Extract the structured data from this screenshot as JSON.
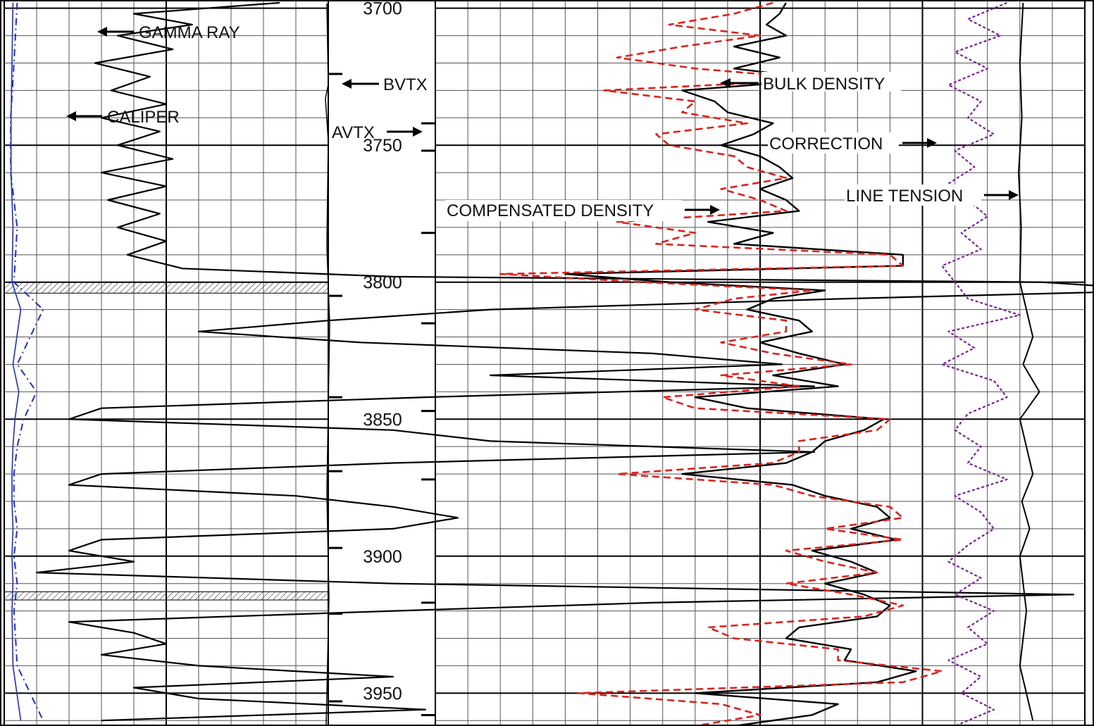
{
  "chart_data": {
    "type": "line",
    "depth_axis": {
      "range": [
        3697,
        3962
      ],
      "tick_labels": [
        "3700",
        "3750",
        "3800",
        "3850",
        "3900",
        "3950"
      ],
      "inverted": true
    },
    "grid": true,
    "labels": {
      "gamma_ray": "GAMMA RAY",
      "caliper": "CALIPER",
      "bvtx": "BVTX",
      "avtx": "AVTX",
      "bulk_density": "BULK DENSITY",
      "correction": "CORRECTION",
      "line_tension": "LINE TENSION",
      "compensated_density": "COMPENSATED DENSITY"
    },
    "markers": {
      "bvtx_depths": [
        3724,
        3805,
        3842,
        3869,
        3897,
        3921,
        3953
      ],
      "avtx_depths": [
        3742,
        3752,
        3782,
        3815,
        3847,
        3872,
        3917,
        3958
      ]
    },
    "shaded_intervals": [
      [
        3800,
        3804
      ],
      [
        3913,
        3916
      ]
    ],
    "colors": {
      "gamma_ray": "#000000",
      "caliper": "#1a2fd6",
      "bulk_density": "#000000",
      "compensated_density": "#e0201b",
      "correction": "#7b1f9c",
      "line_tension": "#000000"
    },
    "series": [
      {
        "name": "GAMMA RAY",
        "track": "left",
        "depth": [
          3698,
          3702,
          3706,
          3710,
          3715,
          3720,
          3725,
          3730,
          3735,
          3740,
          3745,
          3750,
          3755,
          3760,
          3765,
          3770,
          3775,
          3780,
          3785,
          3790,
          3795,
          3798,
          3800,
          3803,
          3806,
          3810,
          3814,
          3818,
          3822,
          3826,
          3830,
          3834,
          3838,
          3842,
          3846,
          3850,
          3854,
          3858,
          3862,
          3866,
          3870,
          3874,
          3878,
          3882,
          3886,
          3890,
          3894,
          3898,
          3902,
          3906,
          3910,
          3914,
          3917,
          3920,
          3924,
          3928,
          3932,
          3936,
          3940,
          3944,
          3948,
          3952,
          3956,
          3960
        ],
        "values": [
          85,
          40,
          58,
          35,
          52,
          28,
          45,
          33,
          50,
          30,
          48,
          35,
          52,
          30,
          50,
          32,
          48,
          35,
          50,
          38,
          55,
          120,
          320,
          360,
          260,
          150,
          100,
          60,
          110,
          200,
          240,
          150,
          250,
          130,
          30,
          20,
          120,
          150,
          250,
          120,
          30,
          20,
          90,
          120,
          140,
          120,
          30,
          20,
          40,
          10,
          120,
          330,
          200,
          120,
          20,
          40,
          50,
          30,
          60,
          120,
          40,
          60,
          130,
          30
        ],
        "unit": "track percent, 0 = left edge"
      },
      {
        "name": "CALIPER",
        "track": "left",
        "depth": [
          3698,
          3720,
          3740,
          3760,
          3780,
          3800,
          3810,
          3820,
          3830,
          3840,
          3850,
          3860,
          3870,
          3880,
          3890,
          3900,
          3910,
          3920,
          3940,
          3960
        ],
        "values": [
          4,
          3,
          2,
          2,
          4,
          3,
          12,
          8,
          4,
          10,
          6,
          4,
          3,
          3,
          4,
          3,
          4,
          3,
          4,
          12
        ],
        "unit": "track percent, 0 = left edge"
      },
      {
        "name": "BULK DENSITY",
        "track": "right",
        "depth": [
          3698,
          3702,
          3706,
          3710,
          3714,
          3718,
          3722,
          3726,
          3730,
          3734,
          3738,
          3742,
          3746,
          3750,
          3754,
          3758,
          3762,
          3766,
          3770,
          3774,
          3778,
          3782,
          3786,
          3790,
          3794,
          3797,
          3800,
          3803,
          3806,
          3810,
          3814,
          3818,
          3822,
          3826,
          3830,
          3834,
          3838,
          3842,
          3846,
          3850,
          3854,
          3858,
          3862,
          3866,
          3870,
          3874,
          3878,
          3882,
          3886,
          3890,
          3894,
          3898,
          3902,
          3906,
          3910,
          3914,
          3918,
          3922,
          3926,
          3930,
          3934,
          3938,
          3942,
          3946,
          3950,
          3954,
          3958,
          3962
        ],
        "values": [
          54,
          53,
          51,
          54,
          46,
          53,
          46,
          60,
          38,
          43,
          45,
          52,
          49,
          44,
          50,
          53,
          55,
          50,
          54,
          56,
          42,
          52,
          46,
          72,
          72,
          20,
          36,
          60,
          52,
          48,
          56,
          58,
          50,
          56,
          63,
          52,
          62,
          40,
          48,
          69,
          66,
          60,
          58,
          54,
          38,
          55,
          60,
          68,
          70,
          64,
          71,
          58,
          64,
          68,
          60,
          66,
          70,
          68,
          56,
          54,
          64,
          63,
          74,
          68,
          40,
          62,
          58,
          46
        ],
        "unit": "track percent, 0 = left edge"
      },
      {
        "name": "COMPENSATED DENSITY",
        "track": "right",
        "depth": [
          3698,
          3702,
          3706,
          3710,
          3714,
          3718,
          3722,
          3726,
          3730,
          3734,
          3738,
          3742,
          3746,
          3750,
          3754,
          3758,
          3762,
          3766,
          3770,
          3774,
          3778,
          3782,
          3786,
          3790,
          3794,
          3797,
          3800,
          3803,
          3806,
          3810,
          3814,
          3818,
          3822,
          3826,
          3830,
          3834,
          3838,
          3842,
          3846,
          3850,
          3854,
          3858,
          3862,
          3866,
          3870,
          3874,
          3878,
          3882,
          3886,
          3890,
          3894,
          3898,
          3902,
          3906,
          3910,
          3914,
          3918,
          3922,
          3926,
          3930,
          3934,
          3938,
          3942,
          3946,
          3950,
          3954,
          3958,
          3962
        ],
        "values": [
          52,
          46,
          36,
          50,
          38,
          28,
          40,
          60,
          26,
          40,
          38,
          48,
          34,
          36,
          46,
          48,
          54,
          44,
          50,
          54,
          28,
          40,
          34,
          70,
          72,
          10,
          32,
          58,
          46,
          40,
          54,
          54,
          44,
          52,
          64,
          44,
          56,
          35,
          40,
          70,
          68,
          56,
          56,
          52,
          28,
          52,
          58,
          70,
          72,
          60,
          72,
          54,
          60,
          68,
          54,
          64,
          72,
          66,
          42,
          46,
          62,
          62,
          78,
          72,
          22,
          44,
          50,
          40
        ],
        "unit": "track percent, 0 = left edge"
      },
      {
        "name": "CORRECTION",
        "track": "right",
        "depth": [
          3698,
          3704,
          3710,
          3716,
          3722,
          3728,
          3734,
          3740,
          3746,
          3752,
          3758,
          3764,
          3770,
          3776,
          3782,
          3788,
          3794,
          3800,
          3806,
          3812,
          3818,
          3824,
          3830,
          3836,
          3842,
          3848,
          3854,
          3860,
          3866,
          3872,
          3878,
          3884,
          3890,
          3896,
          3902,
          3908,
          3914,
          3920,
          3926,
          3932,
          3938,
          3944,
          3950,
          3956,
          3962
        ],
        "values": [
          88,
          82,
          87,
          80,
          85,
          79,
          84,
          82,
          86,
          80,
          83,
          79,
          82,
          85,
          81,
          84,
          78,
          80,
          82,
          90,
          79,
          83,
          78,
          86,
          88,
          82,
          80,
          84,
          82,
          88,
          80,
          84,
          86,
          82,
          79,
          84,
          80,
          86,
          82,
          85,
          79,
          84,
          81,
          86,
          80
        ],
        "unit": "track percent, 0 = left edge"
      },
      {
        "name": "LINE TENSION",
        "track": "right",
        "depth": [
          3698,
          3720,
          3740,
          3760,
          3780,
          3800,
          3810,
          3820,
          3830,
          3840,
          3850,
          3860,
          3870,
          3880,
          3890,
          3900,
          3910,
          3920,
          3940,
          3960
        ],
        "values": [
          90.5,
          90,
          90.3,
          89.8,
          90.2,
          90,
          91,
          92,
          90.5,
          93,
          90,
          91,
          92,
          90.3,
          91.5,
          90,
          90.5,
          91,
          90,
          92
        ],
        "unit": "track percent, 0 = left edge"
      }
    ]
  }
}
